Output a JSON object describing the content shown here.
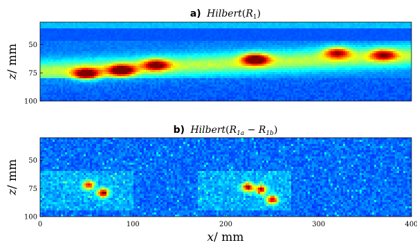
{
  "chart_data": [
    {
      "type": "heatmap",
      "panel": "a",
      "title_prefix": "a)",
      "title_func": "Hilbert",
      "title_arg": "R",
      "title_sub": "1",
      "title_extra": "",
      "ylabel_var": "z",
      "ylabel_unit": "/ mm",
      "xlim": [
        0,
        400
      ],
      "ylim": [
        100,
        30
      ],
      "y_ticks": [
        50,
        75,
        100
      ],
      "x_ticks": [],
      "colormap": "jet",
      "hotspots": [
        {
          "x": 50,
          "z": 76,
          "intensity": 0.95
        },
        {
          "x": 88,
          "z": 73,
          "intensity": 1.0
        },
        {
          "x": 125,
          "z": 68,
          "intensity": 0.8
        },
        {
          "x": 232,
          "z": 63,
          "intensity": 1.0
        },
        {
          "x": 320,
          "z": 57,
          "intensity": 0.75
        },
        {
          "x": 370,
          "z": 59,
          "intensity": 0.7
        }
      ]
    },
    {
      "type": "heatmap",
      "panel": "b",
      "title_prefix": "b)",
      "title_func": "Hilbert",
      "title_arg": "R",
      "title_sub": "1a",
      "title_minus": " − R",
      "title_sub2": "1b",
      "ylabel_var": "z",
      "ylabel_unit": "/ mm",
      "xlabel_var": "x",
      "xlabel_unit": "/ mm",
      "xlim": [
        0,
        400
      ],
      "ylim": [
        100,
        30
      ],
      "y_ticks": [
        50,
        75,
        100
      ],
      "x_ticks": [
        0,
        100,
        200,
        300,
        400
      ],
      "colormap": "jet",
      "hotspots": [
        {
          "x": 52,
          "z": 72,
          "intensity": 0.85
        },
        {
          "x": 68,
          "z": 79,
          "intensity": 1.0
        },
        {
          "x": 224,
          "z": 74,
          "intensity": 0.95
        },
        {
          "x": 238,
          "z": 76,
          "intensity": 0.9
        },
        {
          "x": 250,
          "z": 85,
          "intensity": 0.9
        }
      ]
    }
  ]
}
